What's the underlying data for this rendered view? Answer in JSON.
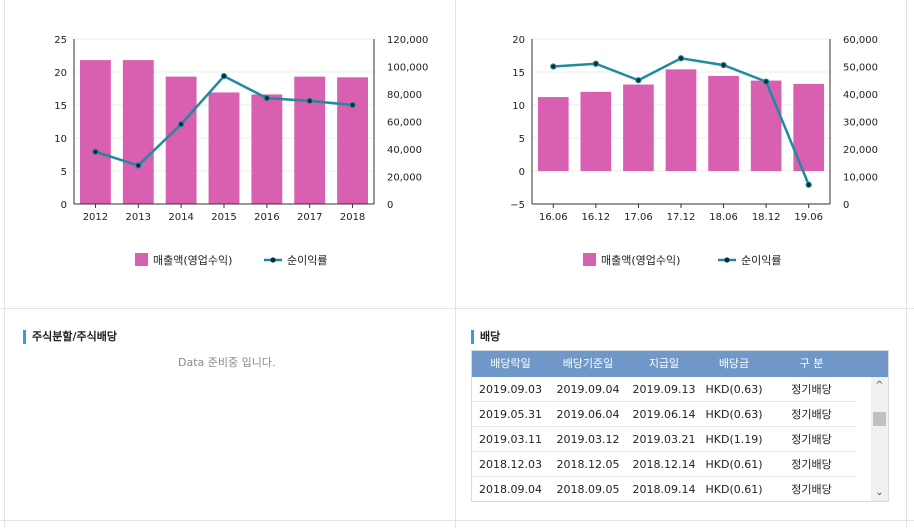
{
  "charts": [
    {
      "type": "bar+line",
      "categories": [
        "2012",
        "2013",
        "2014",
        "2015",
        "2016",
        "2017",
        "2018"
      ],
      "series": [
        {
          "name": "매출액(영업수익)",
          "type": "bar",
          "axis": "left",
          "values": [
            21.8,
            21.8,
            19.3,
            16.9,
            16.6,
            19.3,
            19.2
          ]
        },
        {
          "name": "순이익률",
          "type": "line",
          "axis": "right",
          "values": [
            38000,
            28000,
            58000,
            93000,
            77000,
            75000,
            72000
          ]
        }
      ],
      "left_axis": {
        "min": 0,
        "max": 25,
        "ticks": [
          "0",
          "5",
          "10",
          "15",
          "20",
          "25"
        ]
      },
      "right_axis": {
        "min": 0,
        "max": 120000,
        "ticks": [
          "0",
          "20,000",
          "40,000",
          "60,000",
          "80,000",
          "100,000",
          "120,000"
        ]
      },
      "colors": {
        "bar": "#d95fb0",
        "line": "#1f8aa0",
        "marker": "#0f2f38"
      },
      "legend": [
        "매출액(영업수익)",
        "순이익률"
      ]
    },
    {
      "type": "bar+line",
      "categories": [
        "16.06",
        "16.12",
        "17.06",
        "17.12",
        "18.06",
        "18.12",
        "19.06"
      ],
      "series": [
        {
          "name": "매출액(영업수익)",
          "type": "bar",
          "axis": "left",
          "values": [
            11.2,
            12.0,
            13.1,
            15.4,
            14.4,
            13.7,
            13.2
          ]
        },
        {
          "name": "순이익률",
          "type": "line",
          "axis": "right",
          "values": [
            50000,
            51000,
            45000,
            53000,
            50500,
            44500,
            7000
          ]
        }
      ],
      "left_axis": {
        "min": -5,
        "max": 20,
        "ticks": [
          "−5",
          "0",
          "5",
          "10",
          "15",
          "20"
        ]
      },
      "right_axis": {
        "min": 0,
        "max": 60000,
        "ticks": [
          "0",
          "10,000",
          "20,000",
          "30,000",
          "40,000",
          "50,000",
          "60,000"
        ]
      },
      "colors": {
        "bar": "#d95fb0",
        "line": "#1f8aa0",
        "marker": "#0f2f38"
      },
      "legend": [
        "매출액(영업수익)",
        "순이익률"
      ]
    }
  ],
  "split": {
    "title": "주식분할/주식배당",
    "nodata": "Data 준비중 입니다."
  },
  "dividend": {
    "title": "배당",
    "headers": [
      "배당락일",
      "배당기준일",
      "지급일",
      "배당금",
      "구 분"
    ],
    "rows": [
      [
        "2019.09.03",
        "2019.09.04",
        "2019.09.13",
        "HKD(0.63)",
        "정기배당"
      ],
      [
        "2019.05.31",
        "2019.06.04",
        "2019.06.14",
        "HKD(0.63)",
        "정기배당"
      ],
      [
        "2019.03.11",
        "2019.03.12",
        "2019.03.21",
        "HKD(1.19)",
        "정기배당"
      ],
      [
        "2018.12.03",
        "2018.12.05",
        "2018.12.14",
        "HKD(0.61)",
        "정기배당"
      ],
      [
        "2018.09.04",
        "2018.09.05",
        "2018.09.14",
        "HKD(0.61)",
        "정기배당"
      ]
    ]
  },
  "scroll": {
    "up": "^",
    "down": "⌄"
  }
}
